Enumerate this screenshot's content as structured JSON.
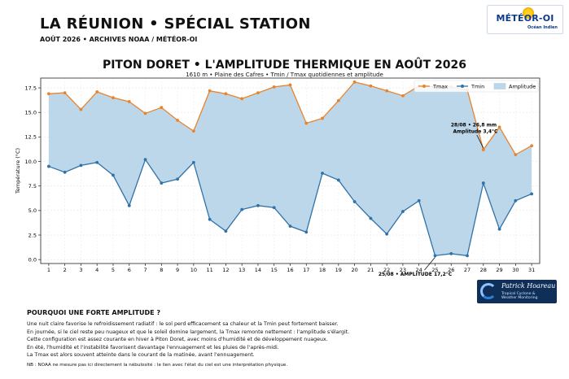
{
  "header": {
    "title": "LA RÉUNION • SPÉCIAL STATION",
    "subtitle": "AOÛT 2026 • ARCHIVES NOAA / MÉTÉOR-OI"
  },
  "logo": {
    "name": "MÉTÉOR-OI",
    "tagline": "Océan Indien"
  },
  "branding": {
    "name": "Patrick Hoareau",
    "tagline_1": "Tropical Cyclone &",
    "tagline_2": "Weather Monitoring"
  },
  "chart_data": {
    "type": "line",
    "title": "PITON DORET • L'AMPLITUDE THERMIQUE EN AOÛT 2026",
    "subtitle": "1610 m • Plaine des Cafres • Tmin / Tmax quotidiennes et amplitude",
    "ylabel": "Température (°C)",
    "xlabel": "",
    "ylim": [
      -0.4,
      18.5
    ],
    "xlim": [
      0.5,
      31.5
    ],
    "yticks": [
      "0.0",
      "2.5",
      "5.0",
      "7.5",
      "10.0",
      "12.5",
      "15.0",
      "17.5"
    ],
    "grid": true,
    "legend_position": "top-right",
    "x": [
      1,
      2,
      3,
      4,
      5,
      6,
      7,
      8,
      9,
      10,
      11,
      12,
      13,
      14,
      15,
      16,
      17,
      18,
      19,
      20,
      21,
      22,
      23,
      24,
      25,
      26,
      27,
      28,
      29,
      30,
      31
    ],
    "series": [
      {
        "name": "Tmax",
        "color": "#e8832d",
        "values": [
          16.9,
          17.0,
          15.3,
          17.1,
          16.5,
          16.1,
          14.9,
          15.5,
          14.2,
          13.1,
          17.2,
          16.9,
          16.4,
          17.0,
          17.6,
          17.8,
          13.9,
          14.4,
          16.2,
          18.1,
          17.7,
          17.2,
          16.7,
          17.7,
          17.6,
          17.6,
          17.3,
          11.2,
          13.5,
          10.7,
          11.6
        ]
      },
      {
        "name": "Tmin",
        "color": "#2f72a8",
        "values": [
          9.5,
          8.9,
          9.6,
          9.9,
          8.6,
          5.5,
          10.2,
          7.8,
          8.2,
          9.9,
          4.1,
          2.9,
          5.1,
          5.5,
          5.3,
          3.4,
          2.8,
          8.8,
          8.1,
          5.9,
          4.2,
          2.6,
          4.9,
          6.0,
          0.4,
          0.6,
          0.4,
          7.8,
          3.1,
          6.0,
          6.7
        ]
      },
      {
        "name": "Amplitude",
        "color": "#bdd7ea"
      }
    ],
    "annotations": [
      {
        "label_1": "28/08 • 26,8 mm",
        "label_2": "Amplitude 3,4°C",
        "day": 28
      },
      {
        "label_1": "25/08 • AMPLITUDE 17,2°C",
        "day": 25
      }
    ]
  },
  "explanation": {
    "title": "POURQUOI UNE FORTE AMPLITUDE ?",
    "lines": [
      "Une nuit claire favorise le refroidissement radiatif : le sol perd efficacement sa chaleur et la Tmin peut fortement baisser.",
      "En journée, si le ciel reste peu nuageux et que le soleil domine largement, la Tmax remonte nettement : l'amplitude s'élargit.",
      "Cette configuration est assez courante en hiver à Piton Doret, avec moins d'humidité et de développement nuageux.",
      "En été, l'humidité et l'instabilité favorisent davantage l'ennuagement et les pluies de l'après-midi.",
      "La Tmax est alors souvent atteinte dans le courant de la matinée, avant l'ennuagement."
    ],
    "note": "NB : NOAA ne mesure pas ici directement la nébulosité : le lien avec l'état du ciel est une interprétation physique."
  }
}
